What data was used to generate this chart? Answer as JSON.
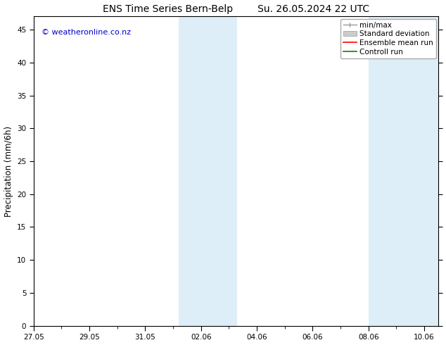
{
  "title": "ENS Time Series Bern-Belp        Su. 26.05.2024 22 UTC",
  "ylabel": "Precipitation (mm/6h)",
  "xlabel": "",
  "background_color": "#ffffff",
  "plot_background": "#ffffff",
  "xlim": [
    0,
    14.5
  ],
  "ylim": [
    0,
    47
  ],
  "yticks": [
    0,
    5,
    10,
    15,
    20,
    25,
    30,
    35,
    40,
    45
  ],
  "xtick_positions": [
    0,
    2,
    4,
    6,
    8,
    10,
    12,
    14
  ],
  "xtick_labels": [
    "27.05",
    "29.05",
    "31.05",
    "02.06",
    "04.06",
    "06.06",
    "08.06",
    "10.06"
  ],
  "shaded_regions": [
    {
      "start": 5.2,
      "end": 7.3
    },
    {
      "start": 12.0,
      "end": 14.5
    }
  ],
  "shaded_color": "#ddeef8",
  "watermark_text": "© weatheronline.co.nz",
  "watermark_color": "#0000cc",
  "watermark_fontsize": 8,
  "title_fontsize": 10,
  "tick_fontsize": 7.5,
  "ylabel_fontsize": 8.5,
  "legend_fontsize": 7.5,
  "minmax_color": "#999999",
  "std_color": "#cccccc",
  "mean_color": "#ff0000",
  "ctrl_color": "#008800"
}
